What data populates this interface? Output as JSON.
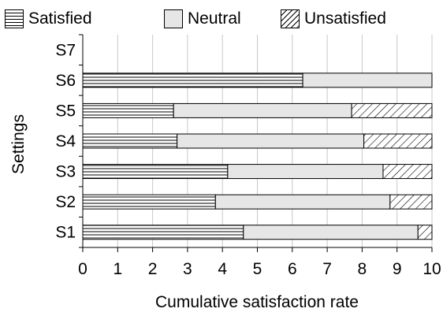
{
  "chart_data": {
    "type": "bar",
    "orientation": "horizontal",
    "stacked": true,
    "xlabel": "Cumulative satisfaction rate",
    "ylabel": "Settings",
    "xlim": [
      0,
      10
    ],
    "xticks": [
      "0",
      "1",
      "2",
      "3",
      "4",
      "5",
      "6",
      "7",
      "8",
      "9",
      "10"
    ],
    "grid": true,
    "legend_placement": "top",
    "categories": [
      "S1",
      "S2",
      "S3",
      "S4",
      "S5",
      "S6",
      "S7"
    ],
    "series": [
      {
        "name": "Satisfied",
        "values": [
          4.6,
          3.8,
          4.15,
          2.7,
          2.6,
          6.3,
          0
        ],
        "pattern": "horizontal-lines"
      },
      {
        "name": "Neutral",
        "values": [
          5.0,
          5.0,
          4.45,
          5.35,
          5.1,
          3.7,
          0
        ],
        "pattern": "solid-light-gray"
      },
      {
        "name": "Unsatisfied",
        "values": [
          0.4,
          1.2,
          1.4,
          1.95,
          2.3,
          0,
          0
        ],
        "pattern": "diagonal-lines"
      }
    ]
  }
}
